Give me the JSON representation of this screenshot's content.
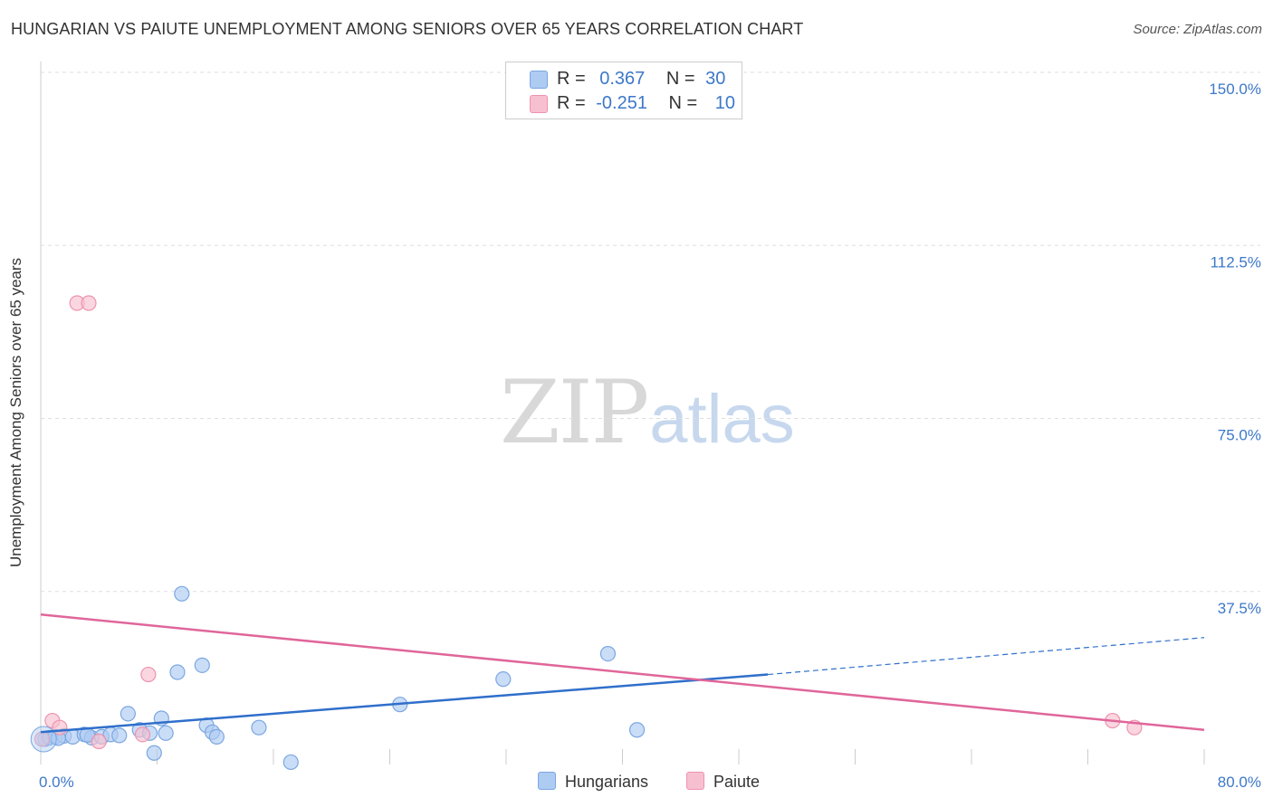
{
  "title": "HUNGARIAN VS PAIUTE UNEMPLOYMENT AMONG SENIORS OVER 65 YEARS CORRELATION CHART",
  "source": "Source: ZipAtlas.com",
  "watermark": {
    "zip": "ZIP",
    "atlas": "atlas"
  },
  "legend": {
    "rows": [
      {
        "r_label": "R =",
        "r_value": "0.367",
        "n_label": "N =",
        "n_value": "30",
        "color": "#aecbf2",
        "border": "#7ba7e0"
      },
      {
        "r_label": "R =",
        "r_value": "-0.251",
        "n_label": "N =",
        "n_value": "10",
        "color": "#f7c0d0",
        "border": "#ee93ae"
      }
    ]
  },
  "bottom_legend": {
    "hungarians": "Hungarians",
    "paiute": "Paiute"
  },
  "chart_data": {
    "type": "scatter",
    "title": "HUNGARIAN VS PAIUTE UNEMPLOYMENT AMONG SENIORS OVER 65 YEARS CORRELATION CHART",
    "xlabel": "",
    "ylabel": "Unemployment Among Seniors over 65 years",
    "xlim": [
      0,
      80
    ],
    "ylim": [
      0,
      150
    ],
    "x_tick_labels": [
      "0.0%",
      "80.0%"
    ],
    "y_tick_labels": [
      "37.5%",
      "75.0%",
      "112.5%",
      "150.0%"
    ],
    "y_ticks": [
      37.5,
      75,
      112.5,
      150
    ],
    "grid": true,
    "series": [
      {
        "name": "Hungarians",
        "color": "#7ba7e0",
        "fill": "#aecbf2",
        "line_color": "#2f6fcb",
        "points": [
          [
            0.3,
            5.5
          ],
          [
            0.6,
            5.8
          ],
          [
            1.0,
            6.0
          ],
          [
            1.6,
            6.2
          ],
          [
            2.2,
            6.0
          ],
          [
            3.0,
            6.5
          ],
          [
            3.5,
            5.8
          ],
          [
            4.2,
            6.0
          ],
          [
            4.8,
            6.5
          ],
          [
            5.4,
            6.3
          ],
          [
            6.0,
            11.0
          ],
          [
            6.8,
            7.5
          ],
          [
            7.5,
            6.8
          ],
          [
            7.8,
            2.5
          ],
          [
            8.3,
            10.0
          ],
          [
            8.6,
            6.8
          ],
          [
            9.4,
            20.0
          ],
          [
            9.7,
            37.0
          ],
          [
            11.1,
            21.5
          ],
          [
            11.4,
            8.5
          ],
          [
            11.8,
            7.0
          ],
          [
            12.1,
            6.0
          ],
          [
            15.0,
            8.0
          ],
          [
            17.2,
            0.5
          ],
          [
            24.7,
            13.0
          ],
          [
            31.8,
            18.5
          ],
          [
            39.0,
            24.0
          ],
          [
            41.0,
            7.5
          ],
          [
            3.2,
            6.4
          ],
          [
            1.2,
            5.7
          ]
        ],
        "trend": {
          "x": [
            0,
            50
          ],
          "y": [
            7.0,
            19.5
          ]
        },
        "trend_dashed": {
          "x": [
            50,
            80
          ],
          "y": [
            19.5,
            27.5
          ]
        }
      },
      {
        "name": "Paiute",
        "color": "#ee93ae",
        "fill": "#f7c0d0",
        "line_color": "#e0669a",
        "points": [
          [
            0.1,
            5.5
          ],
          [
            0.8,
            9.5
          ],
          [
            1.3,
            8.0
          ],
          [
            2.5,
            100.0
          ],
          [
            3.3,
            100.0
          ],
          [
            4.0,
            5.0
          ],
          [
            7.0,
            6.5
          ],
          [
            7.4,
            19.5
          ],
          [
            73.7,
            9.5
          ],
          [
            75.2,
            8.0
          ]
        ],
        "trend": {
          "x": [
            0,
            80
          ],
          "y": [
            32.5,
            7.5
          ]
        }
      }
    ]
  }
}
